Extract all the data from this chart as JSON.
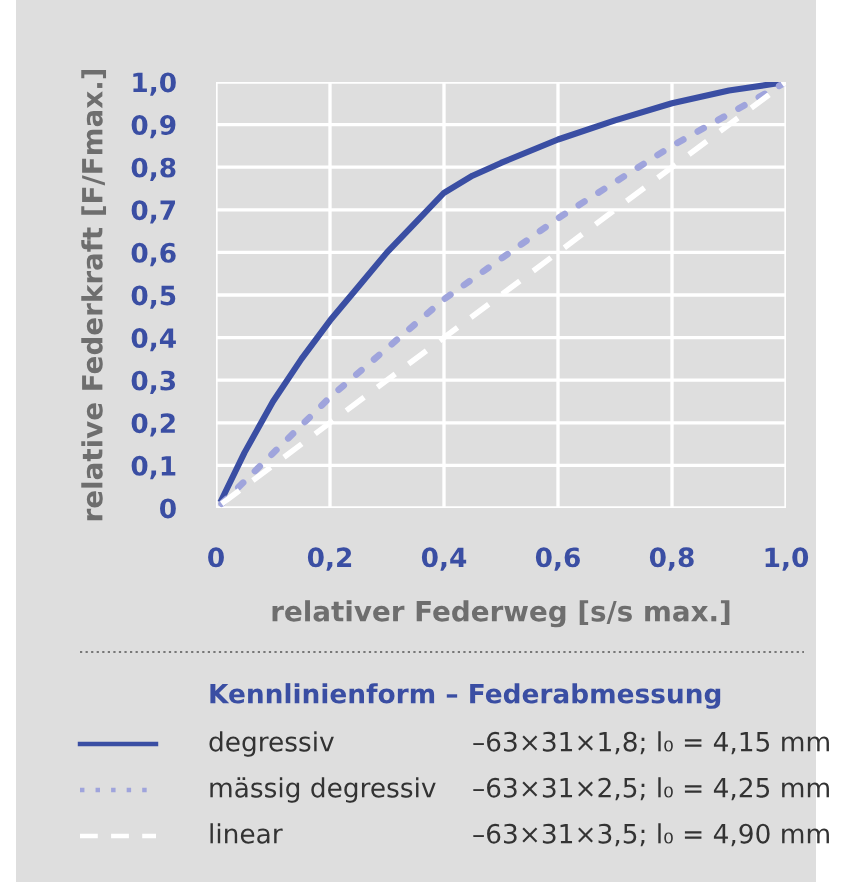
{
  "chart_data": {
    "type": "line",
    "xlabel": "relativer Federweg [s/s max.]",
    "ylabel": "relative Federkraft [F/Fmax.]",
    "legend_title": "Kennlinienform – Federabmessung",
    "legend": "bottom",
    "grid": true,
    "xlim": [
      0,
      1
    ],
    "ylim": [
      0,
      1
    ],
    "xticks": [
      0,
      {
        "value": 0.2,
        "label": "0,2"
      },
      {
        "value": 0.4,
        "label": "0,4"
      },
      {
        "value": 0.6,
        "label": "0,6"
      },
      {
        "value": 0.8,
        "label": "0,8"
      },
      {
        "value": 1.0,
        "label": "1,0"
      }
    ],
    "yticks": [
      0,
      {
        "value": 0.1,
        "label": "0,1"
      },
      {
        "value": 0.2,
        "label": "0,2"
      },
      {
        "value": 0.3,
        "label": "0,3"
      },
      {
        "value": 0.4,
        "label": "0,4"
      },
      {
        "value": 0.5,
        "label": "0,5"
      },
      {
        "value": 0.6,
        "label": "0,6"
      },
      {
        "value": 0.7,
        "label": "0,7"
      },
      {
        "value": 0.8,
        "label": "0,8"
      },
      {
        "value": 0.9,
        "label": "0,9"
      },
      {
        "value": 1.0,
        "label": "1,0"
      }
    ],
    "series": [
      {
        "name": "degressiv",
        "color": "#3a4ea3",
        "line_style": "solid",
        "x": [
          0.01,
          0.05,
          0.1,
          0.15,
          0.2,
          0.25,
          0.3,
          0.35,
          0.4,
          0.45,
          0.5,
          0.6,
          0.7,
          0.8,
          0.9,
          1.0
        ],
        "values": [
          0.02,
          0.13,
          0.25,
          0.35,
          0.44,
          0.52,
          0.6,
          0.67,
          0.74,
          0.78,
          0.81,
          0.865,
          0.91,
          0.95,
          0.98,
          1.0
        ]
      },
      {
        "name": "mässig degressiv",
        "color": "#9fa4dc",
        "line_style": "dotted",
        "x": [
          0.01,
          0.2,
          0.4,
          0.6,
          0.8,
          1.0
        ],
        "values": [
          0.01,
          0.26,
          0.49,
          0.68,
          0.85,
          1.0
        ]
      },
      {
        "name": "linear",
        "color": "#ffffff",
        "line_style": "dashed",
        "x": [
          0.01,
          1.0
        ],
        "values": [
          0.01,
          1.0
        ]
      }
    ],
    "annotations": [
      "–63×31×1,8; l₀ = 4,15 mm",
      "–63×31×2,5; l₀ = 4,25 mm",
      "–63×31×3,5; l₀ = 4,90 mm"
    ]
  }
}
